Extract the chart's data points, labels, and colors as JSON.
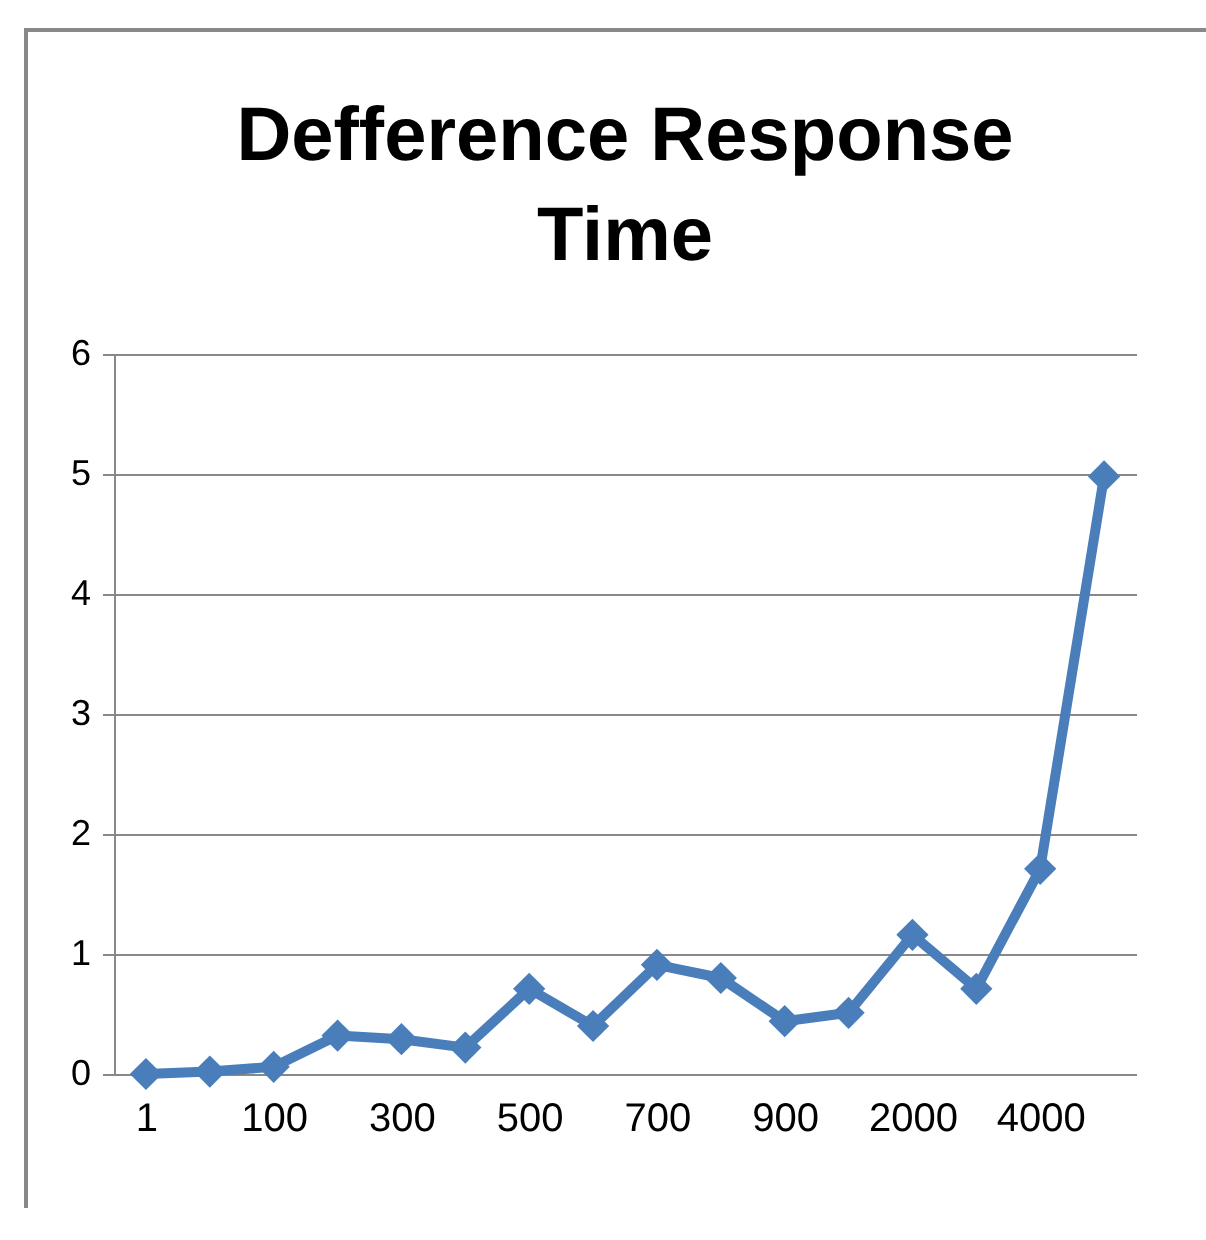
{
  "chart_data": {
    "type": "line",
    "title": "Defference Response Time",
    "categories": [
      "1",
      null,
      "100",
      null,
      "300",
      null,
      "500",
      null,
      "700",
      null,
      "900",
      null,
      "2000",
      null,
      "4000",
      null
    ],
    "series": [
      {
        "color": "#4a7ebb",
        "values": [
          0,
          0.02,
          0.06,
          0.32,
          0.29,
          0.22,
          0.71,
          0.4,
          0.91,
          0.8,
          0.44,
          0.51,
          1.16,
          0.71,
          1.71,
          4.98
        ]
      }
    ],
    "ylim": [
      0,
      6
    ],
    "yticks": [
      0,
      1,
      2,
      3,
      4,
      5,
      6
    ],
    "grid": "y",
    "marker": "diamond",
    "line_style": "solid"
  }
}
